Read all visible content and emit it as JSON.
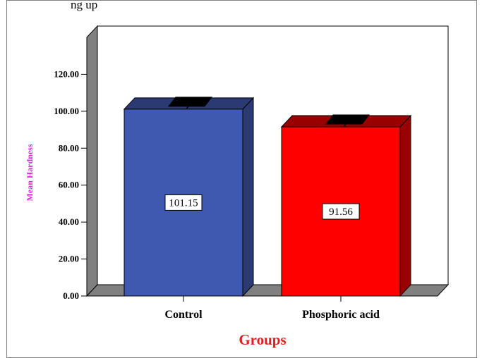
{
  "page": {
    "top_caption": "ng up"
  },
  "colors": {
    "ylabel": "#e020e0",
    "xlabel": "#e02020",
    "wall": "#ffffff",
    "side_wall": "#808080",
    "floor": "#808080"
  },
  "chart_data": {
    "type": "bar",
    "categories": [
      "Control",
      "Phosphoric acid"
    ],
    "values": [
      101.15,
      91.56
    ],
    "value_labels": [
      "101.15",
      "91.56"
    ],
    "bar_colors": [
      "#3f59b0",
      "#ff0000"
    ],
    "bar_side_colors": [
      "#2b3a73",
      "#990000"
    ],
    "bar_top_colors": [
      "#2b3a73",
      "#990000"
    ],
    "xlabel": "Groups",
    "ylabel": "Mean Hardness",
    "yticks": [
      0,
      20,
      40,
      60,
      80,
      100,
      120
    ],
    "ytick_labels": [
      "0.00",
      "20.00",
      "40.00",
      "60.00",
      "80.00",
      "100.00",
      "120.00"
    ],
    "ylim": [
      0,
      140
    ],
    "error_caps": true,
    "three_d": true,
    "grid": false,
    "legend": "none"
  }
}
